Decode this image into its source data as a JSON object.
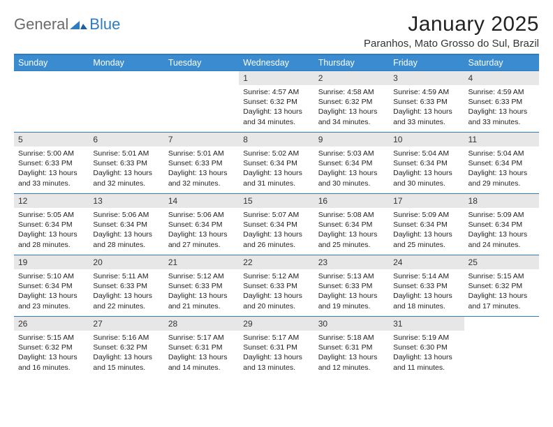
{
  "logo": {
    "text1": "General",
    "text2": "Blue"
  },
  "title": "January 2025",
  "location": "Paranhos, Mato Grosso do Sul, Brazil",
  "colors": {
    "header_bg": "#3a8bd0",
    "header_border": "#2f7bbf",
    "daynum_bg": "#e7e7e7",
    "logo_gray": "#6a6a6a",
    "logo_blue": "#2f7bbf"
  },
  "dayHeaders": [
    "Sunday",
    "Monday",
    "Tuesday",
    "Wednesday",
    "Thursday",
    "Friday",
    "Saturday"
  ],
  "weeks": [
    [
      null,
      null,
      null,
      {
        "n": "1",
        "sr": "4:57 AM",
        "ss": "6:32 PM",
        "dl": "13 hours and 34 minutes."
      },
      {
        "n": "2",
        "sr": "4:58 AM",
        "ss": "6:32 PM",
        "dl": "13 hours and 34 minutes."
      },
      {
        "n": "3",
        "sr": "4:59 AM",
        "ss": "6:33 PM",
        "dl": "13 hours and 33 minutes."
      },
      {
        "n": "4",
        "sr": "4:59 AM",
        "ss": "6:33 PM",
        "dl": "13 hours and 33 minutes."
      }
    ],
    [
      {
        "n": "5",
        "sr": "5:00 AM",
        "ss": "6:33 PM",
        "dl": "13 hours and 33 minutes."
      },
      {
        "n": "6",
        "sr": "5:01 AM",
        "ss": "6:33 PM",
        "dl": "13 hours and 32 minutes."
      },
      {
        "n": "7",
        "sr": "5:01 AM",
        "ss": "6:33 PM",
        "dl": "13 hours and 32 minutes."
      },
      {
        "n": "8",
        "sr": "5:02 AM",
        "ss": "6:34 PM",
        "dl": "13 hours and 31 minutes."
      },
      {
        "n": "9",
        "sr": "5:03 AM",
        "ss": "6:34 PM",
        "dl": "13 hours and 30 minutes."
      },
      {
        "n": "10",
        "sr": "5:04 AM",
        "ss": "6:34 PM",
        "dl": "13 hours and 30 minutes."
      },
      {
        "n": "11",
        "sr": "5:04 AM",
        "ss": "6:34 PM",
        "dl": "13 hours and 29 minutes."
      }
    ],
    [
      {
        "n": "12",
        "sr": "5:05 AM",
        "ss": "6:34 PM",
        "dl": "13 hours and 28 minutes."
      },
      {
        "n": "13",
        "sr": "5:06 AM",
        "ss": "6:34 PM",
        "dl": "13 hours and 28 minutes."
      },
      {
        "n": "14",
        "sr": "5:06 AM",
        "ss": "6:34 PM",
        "dl": "13 hours and 27 minutes."
      },
      {
        "n": "15",
        "sr": "5:07 AM",
        "ss": "6:34 PM",
        "dl": "13 hours and 26 minutes."
      },
      {
        "n": "16",
        "sr": "5:08 AM",
        "ss": "6:34 PM",
        "dl": "13 hours and 25 minutes."
      },
      {
        "n": "17",
        "sr": "5:09 AM",
        "ss": "6:34 PM",
        "dl": "13 hours and 25 minutes."
      },
      {
        "n": "18",
        "sr": "5:09 AM",
        "ss": "6:34 PM",
        "dl": "13 hours and 24 minutes."
      }
    ],
    [
      {
        "n": "19",
        "sr": "5:10 AM",
        "ss": "6:34 PM",
        "dl": "13 hours and 23 minutes."
      },
      {
        "n": "20",
        "sr": "5:11 AM",
        "ss": "6:33 PM",
        "dl": "13 hours and 22 minutes."
      },
      {
        "n": "21",
        "sr": "5:12 AM",
        "ss": "6:33 PM",
        "dl": "13 hours and 21 minutes."
      },
      {
        "n": "22",
        "sr": "5:12 AM",
        "ss": "6:33 PM",
        "dl": "13 hours and 20 minutes."
      },
      {
        "n": "23",
        "sr": "5:13 AM",
        "ss": "6:33 PM",
        "dl": "13 hours and 19 minutes."
      },
      {
        "n": "24",
        "sr": "5:14 AM",
        "ss": "6:33 PM",
        "dl": "13 hours and 18 minutes."
      },
      {
        "n": "25",
        "sr": "5:15 AM",
        "ss": "6:32 PM",
        "dl": "13 hours and 17 minutes."
      }
    ],
    [
      {
        "n": "26",
        "sr": "5:15 AM",
        "ss": "6:32 PM",
        "dl": "13 hours and 16 minutes."
      },
      {
        "n": "27",
        "sr": "5:16 AM",
        "ss": "6:32 PM",
        "dl": "13 hours and 15 minutes."
      },
      {
        "n": "28",
        "sr": "5:17 AM",
        "ss": "6:31 PM",
        "dl": "13 hours and 14 minutes."
      },
      {
        "n": "29",
        "sr": "5:17 AM",
        "ss": "6:31 PM",
        "dl": "13 hours and 13 minutes."
      },
      {
        "n": "30",
        "sr": "5:18 AM",
        "ss": "6:31 PM",
        "dl": "13 hours and 12 minutes."
      },
      {
        "n": "31",
        "sr": "5:19 AM",
        "ss": "6:30 PM",
        "dl": "13 hours and 11 minutes."
      },
      null
    ]
  ],
  "labels": {
    "sunrise": "Sunrise:",
    "sunset": "Sunset:",
    "daylight": "Daylight:"
  }
}
